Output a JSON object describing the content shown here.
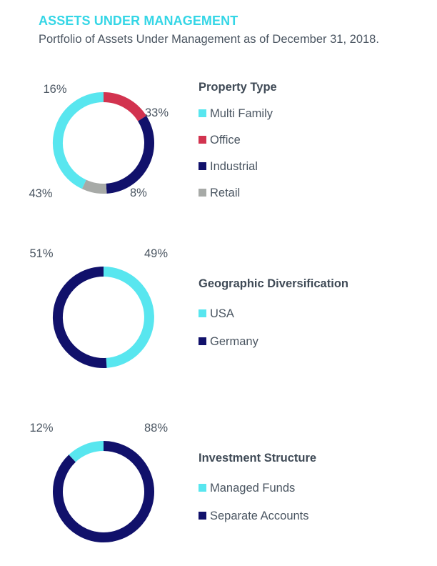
{
  "header": {
    "title": "ASSETS UNDER MANAGEMENT",
    "subtitle": "Portfolio of Assets Under Management as of December 31, 2018."
  },
  "colors": {
    "cyan": "#58e6ef",
    "red": "#d2334f",
    "navy": "#11116b",
    "gray": "#a7aaa7",
    "title": "#35d6e6"
  },
  "chart_data": [
    {
      "type": "pie",
      "donut": true,
      "title": "Property Type",
      "legend_labels": [
        "Multi Family",
        "Office",
        "Industrial",
        "Retail"
      ],
      "slices": [
        {
          "label": "Office",
          "value": 16,
          "pct_label": "16%",
          "color": "#d2334f"
        },
        {
          "label": "Industrial",
          "value": 33,
          "pct_label": "33%",
          "color": "#11116b"
        },
        {
          "label": "Retail",
          "value": 8,
          "pct_label": "8%",
          "color": "#a7aaa7"
        },
        {
          "label": "Multi Family",
          "value": 43,
          "pct_label": "43%",
          "color": "#58e6ef"
        }
      ],
      "legend_placement": "right"
    },
    {
      "type": "pie",
      "donut": true,
      "title": "Geographic Diversification",
      "legend_labels": [
        "USA",
        "Germany"
      ],
      "slices": [
        {
          "label": "USA",
          "value": 49,
          "pct_label": "49%",
          "color": "#58e6ef"
        },
        {
          "label": "Germany",
          "value": 51,
          "pct_label": "51%",
          "color": "#11116b"
        }
      ],
      "legend_placement": "right"
    },
    {
      "type": "pie",
      "donut": true,
      "title": "Investment Structure",
      "legend_labels": [
        "Managed Funds",
        "Separate Accounts"
      ],
      "slices": [
        {
          "label": "Separate Accounts",
          "value": 88,
          "pct_label": "88%",
          "color": "#11116b"
        },
        {
          "label": "Managed Funds",
          "value": 12,
          "pct_label": "12%",
          "color": "#58e6ef"
        }
      ],
      "legend_placement": "right"
    }
  ]
}
